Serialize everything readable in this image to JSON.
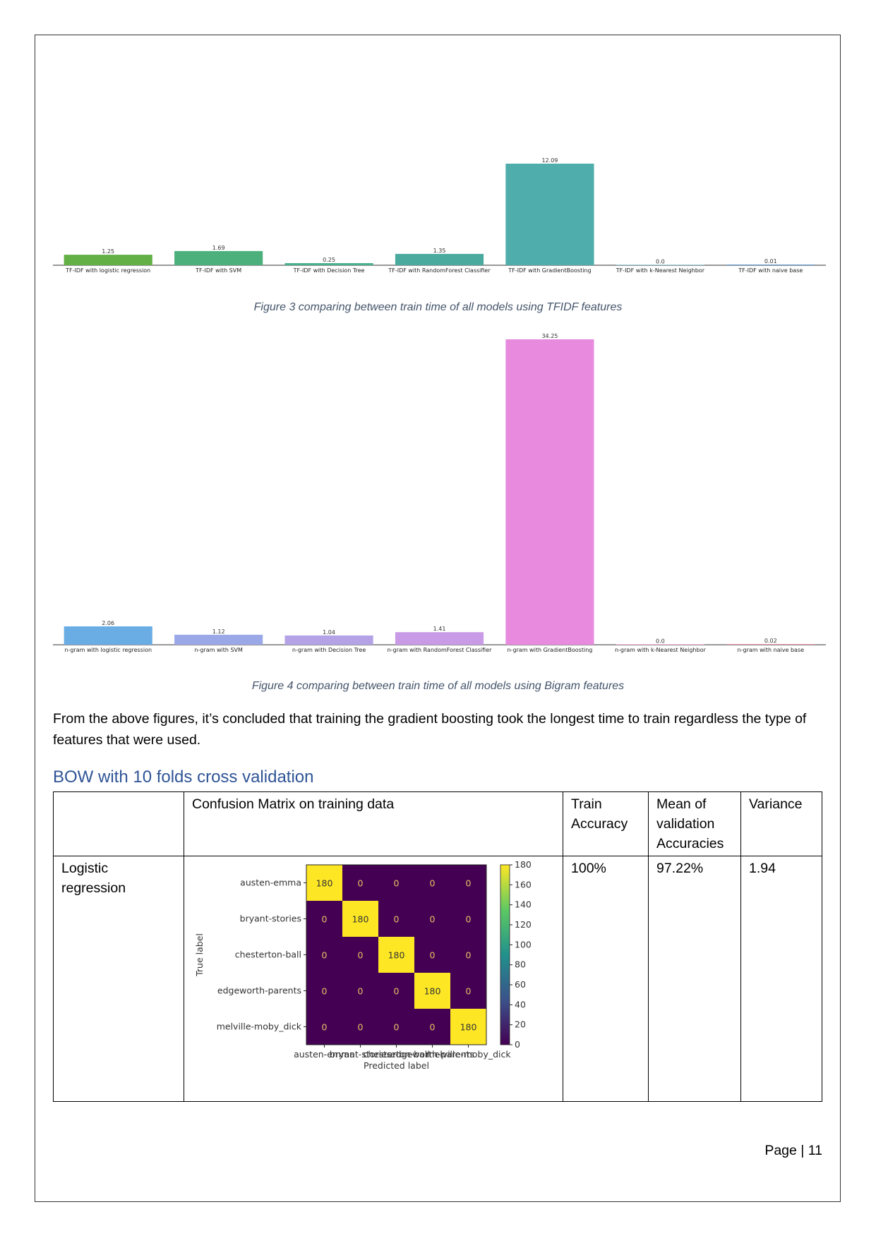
{
  "figure3": {
    "caption": "Figure 3 comparing between train time of all models using TFIDF features",
    "chart_data": {
      "type": "bar",
      "categories": [
        "TF-IDF with logistic regression",
        "TF-IDF with SVM",
        "TF-IDF with Decision Tree",
        "TF-IDF with RandomForest Classifier",
        "TF-IDF with GradientBoosting",
        "TF-IDF with k-Nearest Neighbor",
        "TF-IDF with naive base"
      ],
      "values": [
        1.25,
        1.69,
        0.25,
        1.35,
        12.09,
        0.0,
        0.01
      ],
      "value_labels": [
        "1.25",
        "1.69",
        "0.25",
        "1.35",
        "12.09",
        "0.0",
        "0.01"
      ],
      "colors": [
        "#62b046",
        "#4cb07c",
        "#48b08e",
        "#4aaa9e",
        "#4fadab",
        "#5aa9c2",
        "#6a9fd6"
      ],
      "ylim": [
        0,
        12.09
      ],
      "grid": false
    }
  },
  "figure4": {
    "caption": "Figure 4 comparing between train time of all models using Bigram features",
    "chart_data": {
      "type": "bar",
      "categories": [
        "n-gram with logistic regression",
        "n-gram with SVM",
        "n-gram with Decision Tree",
        "n-gram with RandomForest Classifier",
        "n-gram with GradientBoosting",
        "n-gram with k-Nearest Neighbor",
        "n-gram with naive base"
      ],
      "values": [
        2.06,
        1.12,
        1.04,
        1.41,
        34.25,
        0.0,
        0.02
      ],
      "value_labels": [
        "2.06",
        "1.12",
        "1.04",
        "1.41",
        "34.25",
        "0.0",
        "0.02"
      ],
      "colors": [
        "#6aace4",
        "#9aa8e8",
        "#b4a2e6",
        "#c99ae6",
        "#e88bdf",
        "#e889c8",
        "#e8889f"
      ],
      "ylim": [
        0,
        34.25
      ],
      "grid": false
    }
  },
  "conclusion_text": "From the above figures, it’s concluded that training the gradient boosting took the longest time to train regardless the type of features that were used.",
  "section_heading": "BOW with 10 folds cross validation",
  "table": {
    "headers": [
      "",
      "Confusion Matrix on training data",
      "Train Accuracy",
      "Mean of validation Accuracies",
      "Variance"
    ],
    "rows": [
      {
        "model": "Logistic regression",
        "train_accuracy": "100%",
        "mean_validation": "97.22%",
        "variance": "1.94"
      }
    ]
  },
  "confusion_matrix": {
    "chart_data": {
      "type": "heatmap",
      "labels": [
        "austen-emma",
        "bryant-stories",
        "chesterton-ball",
        "edgeworth-parents",
        "melville-moby_dick"
      ],
      "matrix": [
        [
          180,
          0,
          0,
          0,
          0
        ],
        [
          0,
          180,
          0,
          0,
          0
        ],
        [
          0,
          0,
          180,
          0,
          0
        ],
        [
          0,
          0,
          0,
          180,
          0
        ],
        [
          0,
          0,
          0,
          0,
          180
        ]
      ],
      "xlabel": "Predicted label",
      "ylabel": "True label",
      "colorbar_ticks": [
        "180",
        "160",
        "140",
        "120",
        "100",
        "80",
        "60",
        "40",
        "20",
        "0"
      ],
      "colorbar_range": [
        0,
        180
      ],
      "high_color": "#fde725",
      "low_color": "#440154"
    }
  },
  "footer": "Page | 11"
}
